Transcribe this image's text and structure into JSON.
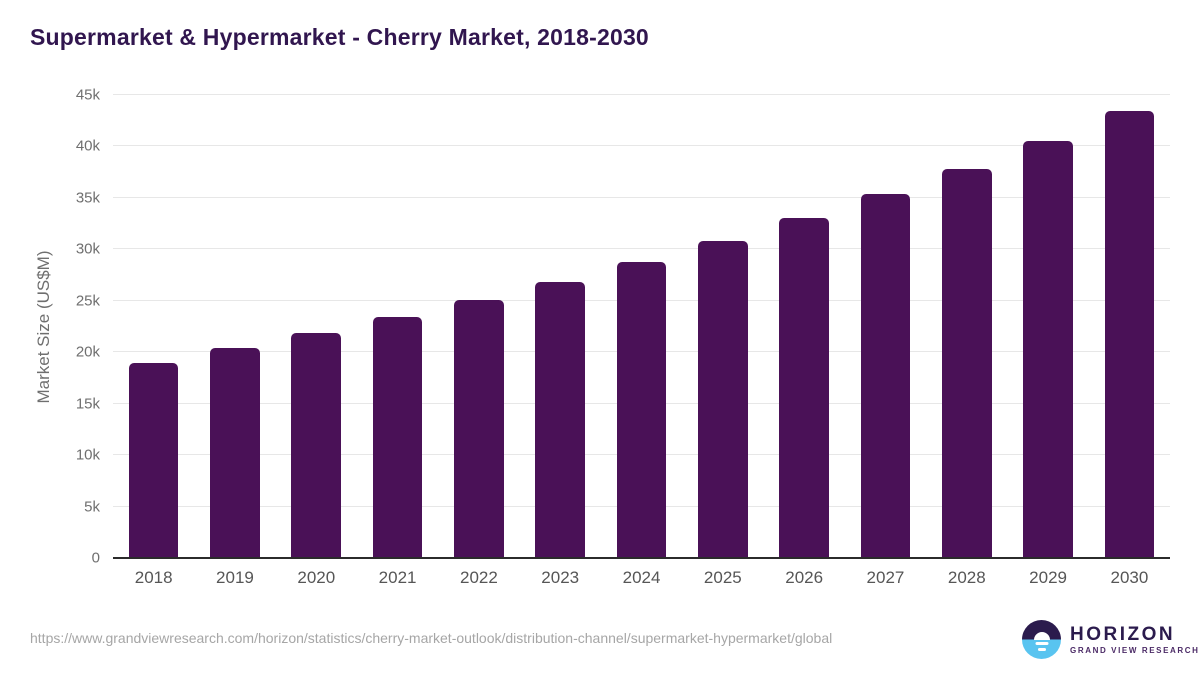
{
  "chart_data": {
    "type": "bar",
    "title": "Supermarket & Hypermarket - Cherry Market, 2018-2030",
    "xlabel": "",
    "ylabel": "Market Size (US$M)",
    "categories": [
      "2018",
      "2019",
      "2020",
      "2021",
      "2022",
      "2023",
      "2024",
      "2025",
      "2026",
      "2027",
      "2028",
      "2029",
      "2030"
    ],
    "values": [
      19000,
      20400,
      21900,
      23450,
      25050,
      26850,
      28750,
      30800,
      33050,
      35350,
      37800,
      40550,
      43450
    ],
    "ylim": [
      0,
      45000
    ],
    "ytick_step": 5000,
    "ytick_labels": [
      "0",
      "5k",
      "10k",
      "15k",
      "20k",
      "25k",
      "30k",
      "35k",
      "40k",
      "45k"
    ],
    "grid": true,
    "legend_position": "none",
    "bar_color": "#4a1157"
  },
  "footer": {
    "source_url": "https://www.grandviewresearch.com/horizon/statistics/cherry-market-outlook/distribution-channel/supermarket-hypermarket/global",
    "logo": {
      "brand": "HORIZON",
      "subbrand": "GRAND VIEW RESEARCH"
    }
  },
  "colors": {
    "bar": "#4a1157",
    "title_text": "#31164f",
    "y_axis_text": "#6f6f6f",
    "x_axis_text": "#565656",
    "gridline": "#e7e7e7",
    "axis_line": "#2b2b2b",
    "source_text": "#a6a6a6",
    "logo_purple": "#2b1b4d",
    "logo_blue": "#59c4f0"
  }
}
